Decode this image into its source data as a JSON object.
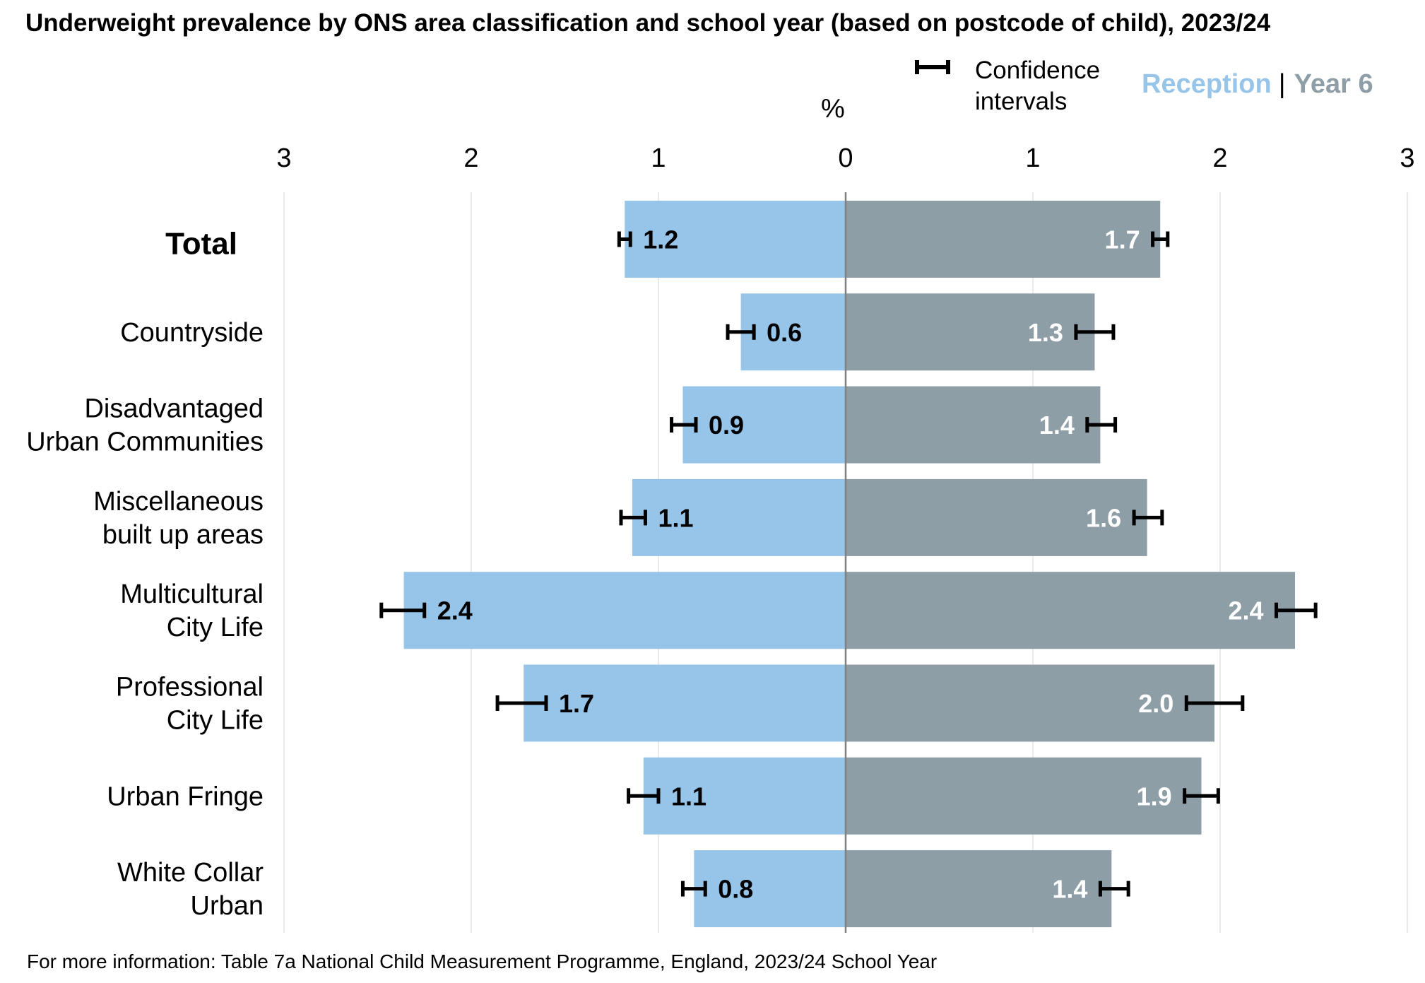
{
  "title": "Underweight prevalence by ONS area classification and school year (based on postcode of child), 2023/24",
  "legend": {
    "ci_label": "Confidence intervals",
    "series": [
      {
        "name": "Reception",
        "color": "#97c5ea"
      },
      {
        "name": "Year 6",
        "color": "#8e9ea7"
      }
    ],
    "separator": "|"
  },
  "unit_label": "%",
  "footnote": "For more information: Table 7a National Child Measurement Programme, England, 2023/24 School Year",
  "chart_data": {
    "type": "bar",
    "orientation": "horizontal-butterfly",
    "categories": [
      "Total",
      "Countryside",
      "Disadvantaged Urban Communities",
      "Miscellaneous built up areas",
      "Multicultural City Life",
      "Professional City Life",
      "Urban Fringe",
      "White Collar Urban"
    ],
    "category_lines": [
      [
        "Total"
      ],
      [
        "Countryside"
      ],
      [
        "Disadvantaged",
        "Urban Communities"
      ],
      [
        "Miscellaneous",
        "built up areas"
      ],
      [
        "Multicultural",
        "City Life"
      ],
      [
        "Professional",
        "City Life"
      ],
      [
        "Urban Fringe"
      ],
      [
        "White Collar",
        "Urban"
      ]
    ],
    "series": [
      {
        "name": "Reception",
        "direction": "left",
        "color": "#97c5ea",
        "label_color": "#000000",
        "values": [
          1.18,
          0.56,
          0.87,
          1.14,
          2.36,
          1.72,
          1.08,
          0.81
        ],
        "labels": [
          "1.2",
          "0.6",
          "0.9",
          "1.1",
          "2.4",
          "1.7",
          "1.1",
          "0.8"
        ],
        "ci": [
          [
            1.15,
            1.21
          ],
          [
            0.49,
            0.63
          ],
          [
            0.8,
            0.93
          ],
          [
            1.07,
            1.2
          ],
          [
            2.25,
            2.48
          ],
          [
            1.6,
            1.86
          ],
          [
            1.0,
            1.16
          ],
          [
            0.75,
            0.87
          ]
        ]
      },
      {
        "name": "Year 6",
        "direction": "right",
        "color": "#8e9ea7",
        "label_color": "#ffffff",
        "values": [
          1.68,
          1.33,
          1.36,
          1.61,
          2.4,
          1.97,
          1.9,
          1.42
        ],
        "labels": [
          "1.7",
          "1.3",
          "1.4",
          "1.6",
          "2.4",
          "2.0",
          "1.9",
          "1.4"
        ],
        "ci": [
          [
            1.64,
            1.72
          ],
          [
            1.23,
            1.43
          ],
          [
            1.29,
            1.44
          ],
          [
            1.54,
            1.69
          ],
          [
            2.3,
            2.51
          ],
          [
            1.82,
            2.12
          ],
          [
            1.81,
            1.99
          ],
          [
            1.36,
            1.51
          ]
        ]
      }
    ],
    "xlim": [
      -3,
      3
    ],
    "ticks": [
      3,
      2,
      1,
      0,
      1,
      2,
      3
    ],
    "grid": true
  }
}
